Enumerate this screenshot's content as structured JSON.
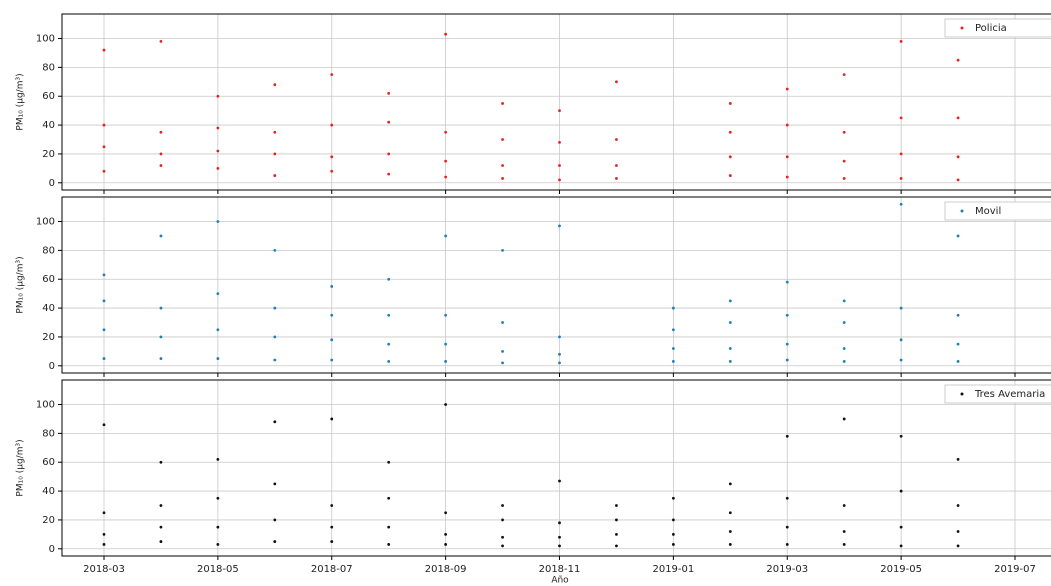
{
  "chart_data": [
    {
      "type": "scatter",
      "ylabel": "PM₁₀ (μg/m³)",
      "ylim": [
        -5,
        117
      ],
      "yticks": [
        0,
        20,
        40,
        60,
        80,
        100
      ],
      "grid": true,
      "legend": "upper right",
      "xticks": [
        "2018-03",
        "2018-05",
        "2018-07",
        "2018-09",
        "2018-11",
        "2019-01",
        "2019-03",
        "2019-05",
        "2019-07"
      ],
      "series": [
        {
          "name": "Policia",
          "color": "#e8221c",
          "x": [
            "2018-03",
            "2018-03",
            "2018-03",
            "2018-03",
            "2018-04",
            "2018-04",
            "2018-04",
            "2018-04",
            "2018-05",
            "2018-05",
            "2018-05",
            "2018-05",
            "2018-06",
            "2018-06",
            "2018-06",
            "2018-06",
            "2018-07",
            "2018-07",
            "2018-07",
            "2018-07",
            "2018-08",
            "2018-08",
            "2018-08",
            "2018-08",
            "2018-09",
            "2018-09",
            "2018-09",
            "2018-09",
            "2018-10",
            "2018-10",
            "2018-10",
            "2018-10",
            "2018-11",
            "2018-11",
            "2018-11",
            "2018-11",
            "2018-12",
            "2018-12",
            "2018-12",
            "2018-12",
            "2019-02",
            "2019-02",
            "2019-02",
            "2019-02",
            "2019-03",
            "2019-03",
            "2019-03",
            "2019-03",
            "2019-04",
            "2019-04",
            "2019-04",
            "2019-04",
            "2019-05",
            "2019-05",
            "2019-05",
            "2019-05",
            "2019-06",
            "2019-06",
            "2019-06",
            "2019-06"
          ],
          "values": [
            8,
            25,
            40,
            92,
            12,
            20,
            35,
            98,
            10,
            22,
            38,
            60,
            5,
            20,
            35,
            68,
            8,
            18,
            40,
            75,
            6,
            20,
            42,
            62,
            4,
            15,
            35,
            103,
            3,
            12,
            30,
            55,
            2,
            12,
            28,
            50,
            3,
            12,
            30,
            70,
            5,
            18,
            35,
            55,
            4,
            18,
            40,
            65,
            3,
            15,
            35,
            75,
            3,
            20,
            45,
            98,
            2,
            18,
            45,
            85
          ]
        }
      ]
    },
    {
      "type": "scatter",
      "ylabel": "PM₁₀ (μg/m³)",
      "ylim": [
        -5,
        117
      ],
      "yticks": [
        0,
        20,
        40,
        60,
        80,
        100
      ],
      "grid": true,
      "legend": "upper right",
      "xticks": [
        "2018-03",
        "2018-05",
        "2018-07",
        "2018-09",
        "2018-11",
        "2019-01",
        "2019-03",
        "2019-05",
        "2019-07"
      ],
      "series": [
        {
          "name": "Movil",
          "color": "#1f7fb8",
          "x": [
            "2018-03",
            "2018-03",
            "2018-03",
            "2018-03",
            "2018-04",
            "2018-04",
            "2018-04",
            "2018-04",
            "2018-05",
            "2018-05",
            "2018-05",
            "2018-05",
            "2018-06",
            "2018-06",
            "2018-06",
            "2018-06",
            "2018-07",
            "2018-07",
            "2018-07",
            "2018-07",
            "2018-08",
            "2018-08",
            "2018-08",
            "2018-08",
            "2018-09",
            "2018-09",
            "2018-09",
            "2018-09",
            "2018-10",
            "2018-10",
            "2018-10",
            "2018-10",
            "2018-11",
            "2018-11",
            "2018-11",
            "2018-11",
            "2019-01",
            "2019-01",
            "2019-01",
            "2019-01",
            "2019-02",
            "2019-02",
            "2019-02",
            "2019-02",
            "2019-03",
            "2019-03",
            "2019-03",
            "2019-03",
            "2019-04",
            "2019-04",
            "2019-04",
            "2019-04",
            "2019-05",
            "2019-05",
            "2019-05",
            "2019-05",
            "2019-06",
            "2019-06",
            "2019-06",
            "2019-06"
          ],
          "values": [
            5,
            25,
            45,
            63,
            5,
            20,
            40,
            90,
            5,
            25,
            50,
            100,
            4,
            20,
            40,
            80,
            4,
            18,
            35,
            55,
            3,
            15,
            35,
            60,
            3,
            15,
            35,
            90,
            2,
            10,
            30,
            80,
            2,
            8,
            20,
            97,
            3,
            12,
            25,
            40,
            3,
            12,
            30,
            45,
            4,
            15,
            35,
            58,
            3,
            12,
            30,
            45,
            4,
            18,
            40,
            112,
            3,
            15,
            35,
            90
          ]
        }
      ]
    },
    {
      "type": "scatter",
      "ylabel": "PM₁₀ (μg/m³)",
      "xlabel": "Año",
      "ylim": [
        -5,
        117
      ],
      "yticks": [
        0,
        20,
        40,
        60,
        80,
        100
      ],
      "grid": true,
      "legend": "upper right",
      "xticks": [
        "2018-03",
        "2018-05",
        "2018-07",
        "2018-09",
        "2018-11",
        "2019-01",
        "2019-03",
        "2019-05",
        "2019-07"
      ],
      "series": [
        {
          "name": "Tres Avemaria",
          "color": "#111111",
          "x": [
            "2018-03",
            "2018-03",
            "2018-03",
            "2018-03",
            "2018-04",
            "2018-04",
            "2018-04",
            "2018-04",
            "2018-05",
            "2018-05",
            "2018-05",
            "2018-05",
            "2018-06",
            "2018-06",
            "2018-06",
            "2018-06",
            "2018-07",
            "2018-07",
            "2018-07",
            "2018-07",
            "2018-08",
            "2018-08",
            "2018-08",
            "2018-08",
            "2018-09",
            "2018-09",
            "2018-09",
            "2018-09",
            "2018-10",
            "2018-10",
            "2018-10",
            "2018-10",
            "2018-11",
            "2018-11",
            "2018-11",
            "2018-11",
            "2018-12",
            "2018-12",
            "2018-12",
            "2018-12",
            "2019-01",
            "2019-01",
            "2019-01",
            "2019-01",
            "2019-02",
            "2019-02",
            "2019-02",
            "2019-02",
            "2019-03",
            "2019-03",
            "2019-03",
            "2019-03",
            "2019-04",
            "2019-04",
            "2019-04",
            "2019-04",
            "2019-05",
            "2019-05",
            "2019-05",
            "2019-05",
            "2019-06",
            "2019-06",
            "2019-06",
            "2019-06"
          ],
          "values": [
            3,
            10,
            25,
            86,
            5,
            15,
            30,
            60,
            3,
            15,
            35,
            62,
            5,
            20,
            45,
            88,
            5,
            15,
            30,
            90,
            3,
            15,
            35,
            60,
            3,
            10,
            25,
            100,
            2,
            8,
            20,
            30,
            2,
            8,
            18,
            47,
            2,
            10,
            20,
            30,
            3,
            10,
            20,
            35,
            3,
            12,
            25,
            45,
            3,
            15,
            35,
            78,
            3,
            12,
            30,
            90,
            2,
            15,
            40,
            78,
            2,
            12,
            30,
            62
          ]
        }
      ]
    }
  ]
}
